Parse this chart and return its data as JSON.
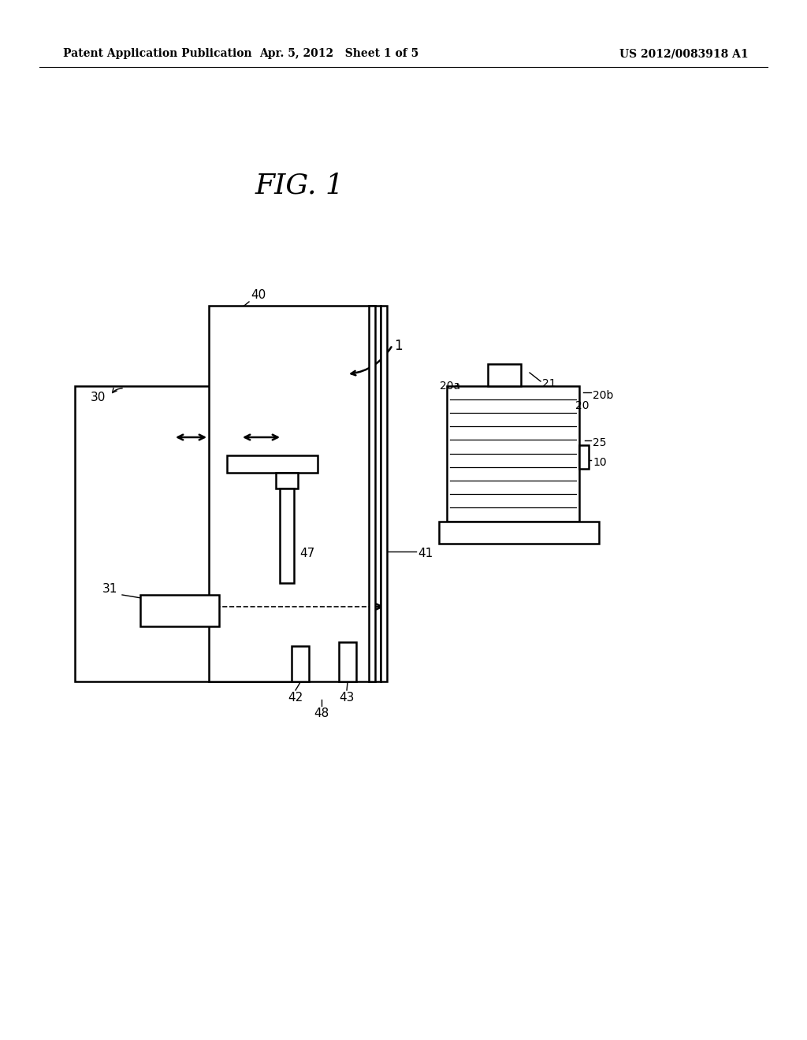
{
  "bg_color": "#ffffff",
  "line_color": "#000000",
  "header_left": "Patent Application Publication",
  "header_mid": "Apr. 5, 2012   Sheet 1 of 5",
  "header_right": "US 2012/0083918 A1",
  "fig_title": "FIG. 1"
}
